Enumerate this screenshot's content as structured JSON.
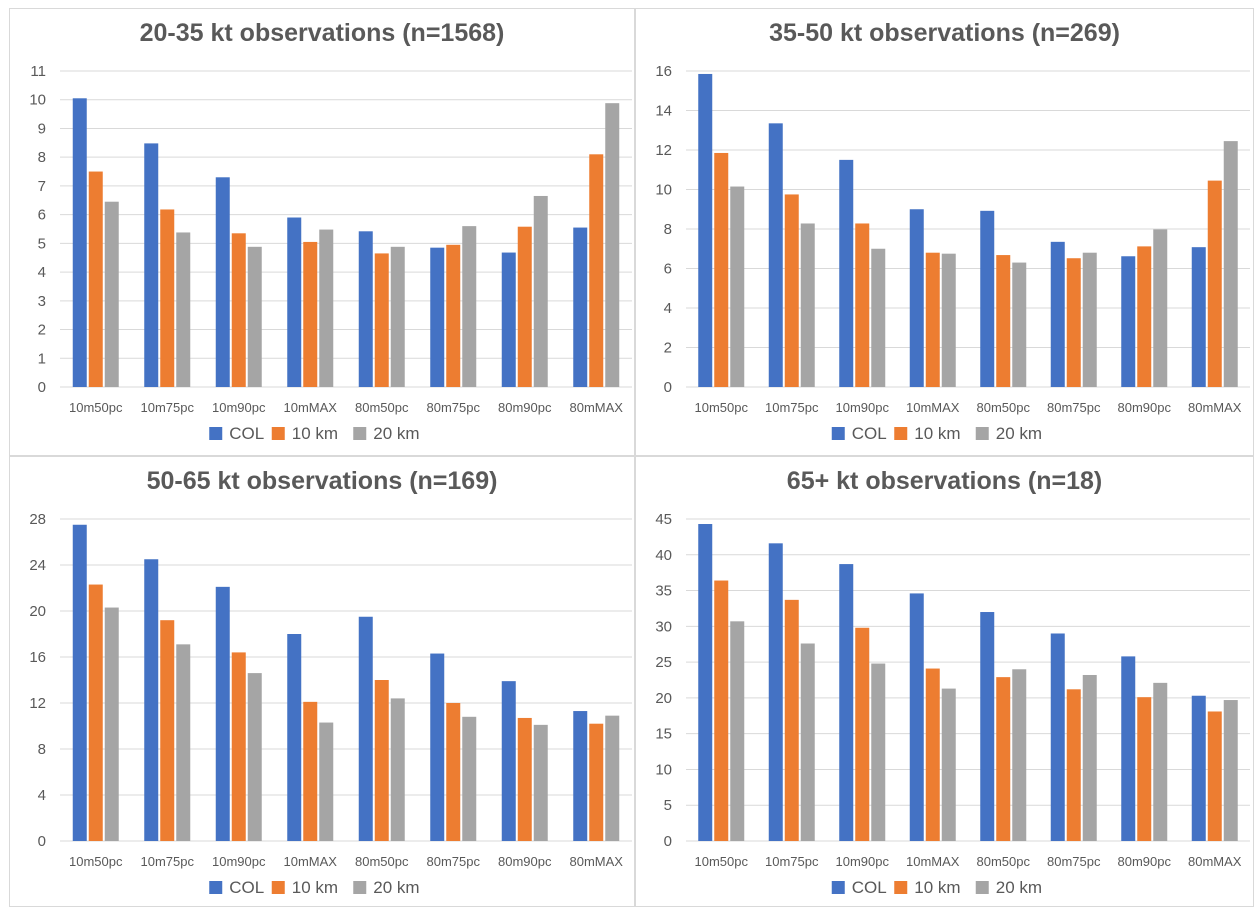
{
  "colors": {
    "COL": "#4472C4",
    "10 km": "#ED7D31",
    "20 km": "#A5A5A5",
    "grid": "#d9d9d9",
    "text": "#595959"
  },
  "chart_data": [
    {
      "type": "bar",
      "title": "20-35 kt observations (n=1568)",
      "categories": [
        "10m50pc",
        "10m75pc",
        "10m90pc",
        "10mMAX",
        "80m50pc",
        "80m75pc",
        "80m90pc",
        "80mMAX"
      ],
      "series": [
        {
          "name": "COL",
          "values": [
            10.05,
            8.48,
            7.3,
            5.9,
            5.42,
            4.85,
            4.68,
            5.55
          ]
        },
        {
          "name": "10 km",
          "values": [
            7.5,
            6.18,
            5.35,
            5.05,
            4.65,
            4.95,
            5.58,
            8.1
          ]
        },
        {
          "name": "20 km",
          "values": [
            6.45,
            5.38,
            4.88,
            5.48,
            4.88,
            5.6,
            6.65,
            9.88
          ]
        }
      ],
      "ylim": [
        0,
        11
      ],
      "yticks": [
        0,
        1,
        2,
        3,
        4,
        5,
        6,
        7,
        8,
        9,
        10,
        11
      ],
      "grid": true,
      "legend": "bottom"
    },
    {
      "type": "bar",
      "title": "35-50 kt observations (n=269)",
      "categories": [
        "10m50pc",
        "10m75pc",
        "10m90pc",
        "10mMAX",
        "80m50pc",
        "80m75pc",
        "80m90pc",
        "80mMAX"
      ],
      "series": [
        {
          "name": "COL",
          "values": [
            15.85,
            13.35,
            11.5,
            9.0,
            8.92,
            7.35,
            6.62,
            7.08
          ]
        },
        {
          "name": "10 km",
          "values": [
            11.85,
            9.75,
            8.28,
            6.8,
            6.68,
            6.52,
            7.12,
            10.45
          ]
        },
        {
          "name": "20 km",
          "values": [
            10.15,
            8.28,
            7.0,
            6.75,
            6.3,
            6.8,
            7.98,
            12.45
          ]
        }
      ],
      "ylim": [
        0,
        16
      ],
      "yticks": [
        0,
        2,
        4,
        6,
        8,
        10,
        12,
        14,
        16
      ],
      "grid": true,
      "legend": "bottom"
    },
    {
      "type": "bar",
      "title": "50-65 kt observations (n=169)",
      "categories": [
        "10m50pc",
        "10m75pc",
        "10m90pc",
        "10mMAX",
        "80m50pc",
        "80m75pc",
        "80m90pc",
        "80mMAX"
      ],
      "series": [
        {
          "name": "COL",
          "values": [
            27.5,
            24.5,
            22.1,
            18.0,
            19.5,
            16.3,
            13.9,
            11.3
          ]
        },
        {
          "name": "10 km",
          "values": [
            22.3,
            19.2,
            16.4,
            12.1,
            14.0,
            12.0,
            10.7,
            10.2
          ]
        },
        {
          "name": "20 km",
          "values": [
            20.3,
            17.1,
            14.6,
            10.3,
            12.4,
            10.8,
            10.1,
            10.9
          ]
        }
      ],
      "ylim": [
        0,
        28
      ],
      "yticks": [
        0,
        4,
        8,
        12,
        16,
        20,
        24,
        28
      ],
      "grid": true,
      "legend": "bottom"
    },
    {
      "type": "bar",
      "title": "65+ kt observations (n=18)",
      "categories": [
        "10m50pc",
        "10m75pc",
        "10m90pc",
        "10mMAX",
        "80m50pc",
        "80m75pc",
        "80m90pc",
        "80mMAX"
      ],
      "series": [
        {
          "name": "COL",
          "values": [
            44.3,
            41.6,
            38.7,
            34.6,
            32.0,
            29.0,
            25.8,
            20.3
          ]
        },
        {
          "name": "10 km",
          "values": [
            36.4,
            33.7,
            29.8,
            24.1,
            22.9,
            21.2,
            20.1,
            18.1
          ]
        },
        {
          "name": "20 km",
          "values": [
            30.7,
            27.6,
            24.8,
            21.3,
            24.0,
            23.2,
            22.1,
            19.7
          ]
        }
      ],
      "ylim": [
        0,
        45
      ],
      "yticks": [
        0,
        5,
        10,
        15,
        20,
        25,
        30,
        35,
        40,
        45
      ],
      "grid": true,
      "legend": "bottom"
    }
  ]
}
